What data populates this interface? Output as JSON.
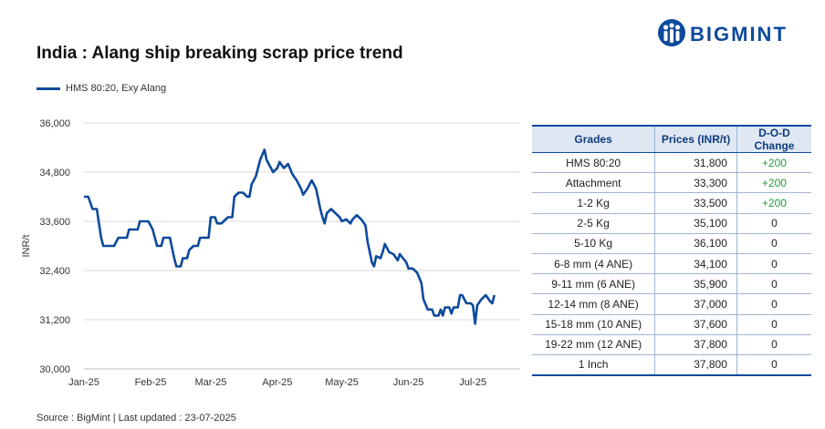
{
  "header": {
    "brand": "BIGMINT"
  },
  "colors": {
    "line": "#0d4a9c",
    "brand": "#0d4a9c",
    "positive": "#1f9a3c",
    "grid": "#d9d9d9",
    "table_header_bg": "#dfe7f3"
  },
  "source": "Source : BigMint | Last updated : 23-07-2025",
  "chart_data": {
    "type": "line",
    "title": "India : Alang ship breaking scrap price trend",
    "ylabel": "INR/t",
    "ylim": [
      30000,
      36000
    ],
    "yticks": [
      30000,
      31200,
      32400,
      33600,
      34800,
      36000
    ],
    "ytick_labels": [
      "30,000",
      "31,200",
      "32,400",
      "33,600",
      "34,800",
      "36,000"
    ],
    "xlim": [
      "2025-01-01",
      "2025-07-23"
    ],
    "xtick_labels": [
      "Jan-25",
      "Feb-25",
      "Mar-25",
      "Apr-25",
      "May-25",
      "Jun-25",
      "Jul-25"
    ],
    "xtick_dates": [
      "2025-01-01",
      "2025-02-01",
      "2025-03-01",
      "2025-04-01",
      "2025-05-01",
      "2025-06-01",
      "2025-07-01"
    ],
    "grid": true,
    "legend_position": "top-left",
    "series": [
      {
        "name": "HMS 80:20, Exy Alang",
        "points": [
          [
            "2025-01-01",
            34200
          ],
          [
            "2025-01-03",
            34200
          ],
          [
            "2025-01-05",
            33900
          ],
          [
            "2025-01-07",
            33900
          ],
          [
            "2025-01-09",
            33200
          ],
          [
            "2025-01-10",
            33000
          ],
          [
            "2025-01-15",
            33000
          ],
          [
            "2025-01-17",
            33200
          ],
          [
            "2025-01-21",
            33200
          ],
          [
            "2025-01-22",
            33400
          ],
          [
            "2025-01-26",
            33400
          ],
          [
            "2025-01-27",
            33600
          ],
          [
            "2025-01-31",
            33600
          ],
          [
            "2025-02-02",
            33400
          ],
          [
            "2025-02-04",
            33000
          ],
          [
            "2025-02-06",
            33000
          ],
          [
            "2025-02-07",
            33200
          ],
          [
            "2025-02-10",
            33200
          ],
          [
            "2025-02-12",
            32700
          ],
          [
            "2025-02-13",
            32500
          ],
          [
            "2025-02-15",
            32500
          ],
          [
            "2025-02-16",
            32700
          ],
          [
            "2025-02-18",
            32700
          ],
          [
            "2025-02-19",
            32900
          ],
          [
            "2025-02-21",
            33000
          ],
          [
            "2025-02-23",
            33000
          ],
          [
            "2025-02-24",
            33200
          ],
          [
            "2025-02-28",
            33200
          ],
          [
            "2025-03-01",
            33700
          ],
          [
            "2025-03-03",
            33700
          ],
          [
            "2025-03-04",
            33550
          ],
          [
            "2025-03-06",
            33550
          ],
          [
            "2025-03-07",
            33600
          ],
          [
            "2025-03-09",
            33700
          ],
          [
            "2025-03-11",
            33700
          ],
          [
            "2025-03-12",
            34200
          ],
          [
            "2025-03-14",
            34300
          ],
          [
            "2025-03-16",
            34300
          ],
          [
            "2025-03-18",
            34200
          ],
          [
            "2025-03-19",
            34200
          ],
          [
            "2025-03-20",
            34500
          ],
          [
            "2025-03-22",
            34700
          ],
          [
            "2025-03-24",
            35100
          ],
          [
            "2025-03-26",
            35350
          ],
          [
            "2025-03-27",
            35100
          ],
          [
            "2025-03-29",
            34900
          ],
          [
            "2025-03-30",
            34800
          ],
          [
            "2025-04-01",
            34900
          ],
          [
            "2025-04-02",
            35050
          ],
          [
            "2025-04-04",
            34900
          ],
          [
            "2025-04-06",
            35000
          ],
          [
            "2025-04-08",
            34750
          ],
          [
            "2025-04-10",
            34600
          ],
          [
            "2025-04-12",
            34400
          ],
          [
            "2025-04-13",
            34250
          ],
          [
            "2025-04-15",
            34400
          ],
          [
            "2025-04-17",
            34600
          ],
          [
            "2025-04-19",
            34400
          ],
          [
            "2025-04-21",
            33900
          ],
          [
            "2025-04-22",
            33700
          ],
          [
            "2025-04-23",
            33550
          ],
          [
            "2025-04-24",
            33800
          ],
          [
            "2025-04-26",
            33900
          ],
          [
            "2025-04-28",
            33800
          ],
          [
            "2025-04-30",
            33700
          ],
          [
            "2025-05-01",
            33600
          ],
          [
            "2025-05-03",
            33650
          ],
          [
            "2025-05-05",
            33550
          ],
          [
            "2025-05-06",
            33650
          ],
          [
            "2025-05-08",
            33750
          ],
          [
            "2025-05-10",
            33650
          ],
          [
            "2025-05-12",
            33500
          ],
          [
            "2025-05-13",
            33100
          ],
          [
            "2025-05-14",
            32850
          ],
          [
            "2025-05-15",
            32600
          ],
          [
            "2025-05-16",
            32500
          ],
          [
            "2025-05-17",
            32750
          ],
          [
            "2025-05-19",
            32700
          ],
          [
            "2025-05-20",
            32850
          ],
          [
            "2025-05-21",
            33050
          ],
          [
            "2025-05-23",
            32850
          ],
          [
            "2025-05-25",
            32800
          ],
          [
            "2025-05-27",
            32650
          ],
          [
            "2025-05-28",
            32800
          ],
          [
            "2025-05-31",
            32600
          ],
          [
            "2025-06-01",
            32450
          ],
          [
            "2025-06-03",
            32450
          ],
          [
            "2025-06-05",
            32350
          ],
          [
            "2025-06-07",
            32100
          ],
          [
            "2025-06-08",
            31700
          ],
          [
            "2025-06-10",
            31450
          ],
          [
            "2025-06-12",
            31450
          ],
          [
            "2025-06-13",
            31300
          ],
          [
            "2025-06-15",
            31300
          ],
          [
            "2025-06-16",
            31450
          ],
          [
            "2025-06-17",
            31300
          ],
          [
            "2025-06-18",
            31500
          ],
          [
            "2025-06-20",
            31500
          ],
          [
            "2025-06-21",
            31350
          ],
          [
            "2025-06-22",
            31500
          ],
          [
            "2025-06-24",
            31500
          ],
          [
            "2025-06-25",
            31800
          ],
          [
            "2025-06-26",
            31800
          ],
          [
            "2025-06-28",
            31600
          ],
          [
            "2025-06-30",
            31600
          ],
          [
            "2025-07-01",
            31550
          ],
          [
            "2025-07-02",
            31100
          ],
          [
            "2025-07-03",
            31550
          ],
          [
            "2025-07-05",
            31700
          ],
          [
            "2025-07-07",
            31800
          ],
          [
            "2025-07-09",
            31650
          ],
          [
            "2025-07-10",
            31600
          ],
          [
            "2025-07-11",
            31800
          ]
        ]
      }
    ]
  },
  "table": {
    "headers": [
      "Grades",
      "Prices (INR/t)",
      "D-O-D Change"
    ],
    "rows": [
      [
        "HMS 80:20",
        "31,800",
        "+200"
      ],
      [
        "Attachment",
        "33,300",
        "+200"
      ],
      [
        "1-2 Kg",
        "33,500",
        "+200"
      ],
      [
        "2-5 Kg",
        "35,100",
        "0"
      ],
      [
        "5-10 Kg",
        "36,100",
        "0"
      ],
      [
        "6-8 mm (4 ANE)",
        "34,100",
        "0"
      ],
      [
        "9-11 mm (6 ANE)",
        "35,900",
        "0"
      ],
      [
        "12-14 mm (8 ANE)",
        "37,000",
        "0"
      ],
      [
        "15-18 mm (10 ANE)",
        "37,600",
        "0"
      ],
      [
        "19-22 mm (12 ANE)",
        "37,800",
        "0"
      ],
      [
        "1 Inch",
        "37,800",
        "0"
      ]
    ]
  }
}
